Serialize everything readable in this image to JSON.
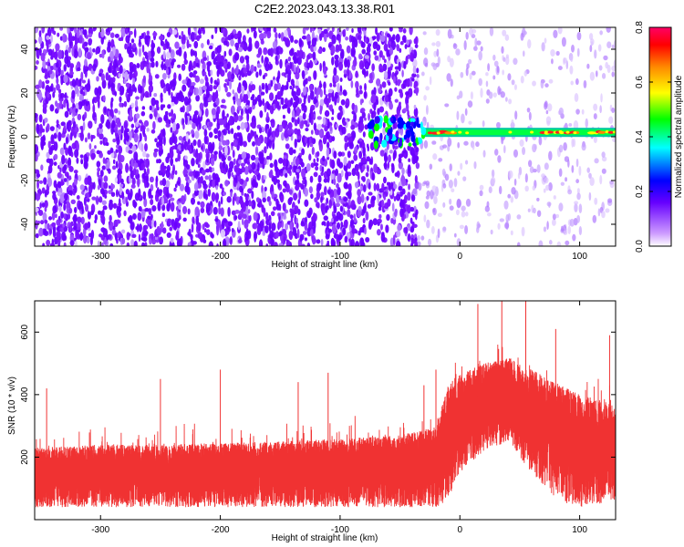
{
  "figure": {
    "title": "C2E2.2023.043.13.38.R01"
  },
  "chart_data": [
    {
      "type": "heatmap",
      "xlabel": "Height of straight line (km)",
      "ylabel": "Frequency (Hz)",
      "xlim": [
        -355,
        130
      ],
      "ylim": [
        -50,
        50
      ],
      "xticks": [
        -300,
        -200,
        -100,
        0,
        100
      ],
      "yticks": [
        -40,
        -20,
        0,
        20,
        40
      ],
      "noise_region_x": [
        -355,
        -35
      ],
      "signal": {
        "frequency_hz": 2,
        "x_range": [
          -75,
          130
        ],
        "strongest_x_ranges": [
          [
            -25,
            -5
          ],
          [
            70,
            100
          ],
          [
            110,
            130
          ]
        ]
      },
      "colorbar": {
        "label": "Normalized spectral amplitude",
        "range": [
          0,
          0.8
        ],
        "ticks": [
          0.0,
          0.2,
          0.4,
          0.6,
          0.8
        ],
        "colormap": [
          "#ffffff",
          "#cc99ff",
          "#6600ff",
          "#0000ff",
          "#00ffff",
          "#00ff00",
          "#ffff00",
          "#ff8800",
          "#ff0000",
          "#ff0066"
        ]
      }
    },
    {
      "type": "area",
      "xlabel": "Height of straight line (km)",
      "ylabel": "SNR (10 * v/v)",
      "xlim": [
        -355,
        130
      ],
      "ylim": [
        0,
        700
      ],
      "xticks": [
        -300,
        -200,
        -100,
        0,
        100
      ],
      "yticks": [
        200,
        400,
        600
      ],
      "color": "#f03232",
      "envelope": {
        "x": [
          -355,
          -300,
          -250,
          -200,
          -150,
          -100,
          -50,
          -20,
          -10,
          0,
          20,
          40,
          60,
          80,
          100,
          120,
          130
        ],
        "upper": [
          230,
          240,
          240,
          245,
          250,
          260,
          270,
          300,
          430,
          470,
          500,
          520,
          480,
          440,
          400,
          380,
          360
        ],
        "lower": [
          40,
          40,
          40,
          40,
          40,
          40,
          40,
          40,
          60,
          150,
          220,
          250,
          150,
          60,
          40,
          50,
          60
        ],
        "peaks_x": [
          -345,
          -250,
          -200,
          -135,
          -110,
          -30,
          -20,
          15,
          35,
          55,
          80,
          125
        ],
        "peaks_y": [
          420,
          450,
          480,
          440,
          470,
          430,
          480,
          690,
          700,
          700,
          610,
          590
        ]
      }
    }
  ]
}
